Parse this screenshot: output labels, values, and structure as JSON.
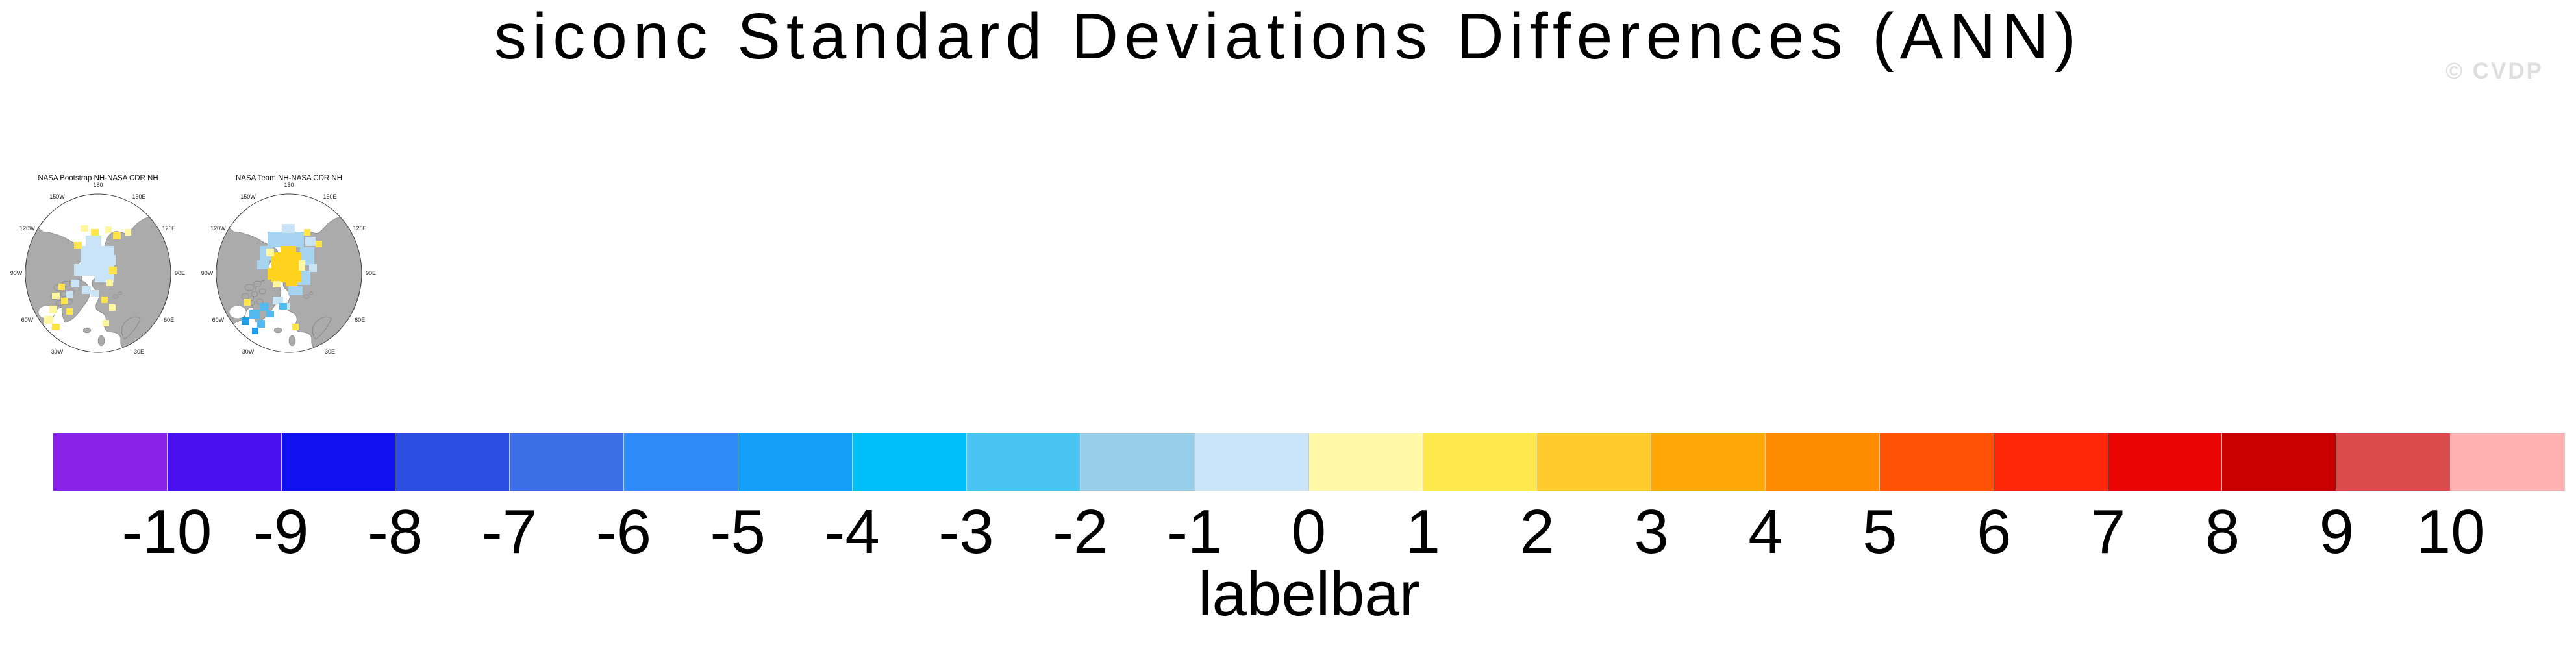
{
  "header": {
    "title": "siconc Standard Deviations Differences (ANN)",
    "watermark": "© CVDP"
  },
  "colorbar": {
    "caption": "labelbar",
    "tick_labels": [
      "-10",
      "-9",
      "-8",
      "-7",
      "-6",
      "-5",
      "-4",
      "-3",
      "-2",
      "-1",
      "0",
      "1",
      "2",
      "3",
      "4",
      "5",
      "6",
      "7",
      "8",
      "9",
      "10"
    ],
    "colors": [
      "#8A22E8",
      "#4A10F0",
      "#1010F0",
      "#2C4DE2",
      "#3B6FE8",
      "#2E8CF8",
      "#14A0FA",
      "#00BFF8",
      "#49C4F2",
      "#96CEEA",
      "#C9E4F6",
      "#FFF9A6",
      "#FFE84E",
      "#FFCB2C",
      "#FFA707",
      "#FF8C00",
      "#FF5206",
      "#FF2608",
      "#EA0404",
      "#C80000",
      "#D94A4A",
      "#FFB0B0"
    ],
    "border_color": "#cccccc"
  },
  "palette": {
    "pb": "#C9E4F6",
    "lb": "#A6D4F0",
    "mb": "#52BAEE",
    "db": "#1E9EE8",
    "py": "#FFF6A0",
    "yl": "#FFE44A",
    "vy": "#FFD21E",
    "land": "#ABABAB",
    "coast": "#6E6E6E",
    "outline": "#333333",
    "label_color": "#222222"
  },
  "maps": [
    {
      "title": "NASA Bootstrap NH-NASA CDR NH",
      "lon_labels": [
        {
          "t": "180",
          "a": 0
        },
        {
          "t": "150E",
          "a": 30
        },
        {
          "t": "120E",
          "a": 60
        },
        {
          "t": "90E",
          "a": 90
        },
        {
          "t": "60E",
          "a": 120
        },
        {
          "t": "30E",
          "a": 150
        },
        {
          "t": "0",
          "a": 180
        },
        {
          "t": "30W",
          "a": 210
        },
        {
          "t": "60W",
          "a": 240
        },
        {
          "t": "90W",
          "a": 270
        },
        {
          "t": "120W",
          "a": 300
        },
        {
          "t": "150W",
          "a": 330
        }
      ],
      "patches": [
        {
          "c": "pb",
          "r": [
            [
              118,
              123,
              52,
              30
            ],
            [
              126,
              107,
              24,
              16
            ],
            [
              108,
              151,
              42,
              18
            ],
            [
              140,
              153,
              30,
              26
            ],
            [
              152,
              137,
              20,
              16
            ],
            [
              104,
              175,
              12,
              12
            ],
            [
              120,
              185,
              14,
              12
            ],
            [
              134,
              191,
              12,
              10
            ],
            [
              96,
              193,
              10,
              10
            ]
          ]
        },
        {
          "c": "py",
          "r": [
            [
              118,
              91,
              12,
              10
            ],
            [
              156,
              93,
              10,
              10
            ],
            [
              186,
              97,
              10,
              10
            ],
            [
              158,
              175,
              10,
              10
            ],
            [
              74,
              195,
              12,
              10
            ],
            [
              70,
              215,
              12,
              12
            ],
            [
              62,
              231,
              14,
              12
            ],
            [
              58,
              253,
              10,
              10
            ],
            [
              162,
              213,
              10,
              10
            ],
            [
              152,
              237,
              10,
              10
            ]
          ]
        },
        {
          "c": "yl",
          "r": [
            [
              134,
              97,
              12,
              10
            ],
            [
              168,
              101,
              12,
              12
            ],
            [
              108,
              117,
              12,
              10
            ],
            [
              162,
              155,
              12,
              12
            ],
            [
              84,
              181,
              10,
              10
            ],
            [
              88,
              203,
              10,
              10
            ],
            [
              96,
              219,
              10,
              10
            ],
            [
              74,
              243,
              12,
              10
            ],
            [
              150,
              201,
              10,
              10
            ]
          ]
        }
      ]
    },
    {
      "title": "NASA Team NH-NASA CDR NH",
      "lon_labels": [
        {
          "t": "180",
          "a": 0
        },
        {
          "t": "150E",
          "a": 30
        },
        {
          "t": "120E",
          "a": 60
        },
        {
          "t": "90E",
          "a": 90
        },
        {
          "t": "60E",
          "a": 120
        },
        {
          "t": "30E",
          "a": 150
        },
        {
          "t": "0",
          "a": 180
        },
        {
          "t": "30W",
          "a": 210
        },
        {
          "t": "60W",
          "a": 240
        },
        {
          "t": "90W",
          "a": 270
        },
        {
          "t": "120W",
          "a": 300
        },
        {
          "t": "150W",
          "a": 330
        }
      ],
      "patches": [
        {
          "c": "lb",
          "r": [
            [
              112,
              101,
              56,
              24
            ],
            [
              100,
              123,
              20,
              22
            ],
            [
              162,
              125,
              22,
              28
            ],
            [
              158,
              161,
              20,
              22
            ],
            [
              144,
              185,
              22,
              14
            ],
            [
              96,
              145,
              18,
              14
            ]
          ]
        },
        {
          "c": "pb",
          "r": [
            [
              134,
              89,
              20,
              14
            ],
            [
              170,
              109,
              16,
              14
            ],
            [
              176,
              151,
              12,
              12
            ],
            [
              120,
              201,
              16,
              12
            ],
            [
              134,
              211,
              12,
              10
            ]
          ]
        },
        {
          "c": "vy",
          "r": [
            [
              118,
              133,
              46,
              46
            ],
            [
              132,
              123,
              24,
              12
            ],
            [
              112,
              157,
              18,
              18
            ],
            [
              140,
              173,
              18,
              12
            ]
          ]
        },
        {
          "c": "py",
          "r": [
            [
              110,
              127,
              12,
              12
            ],
            [
              160,
              145,
              10,
              16
            ],
            [
              120,
              177,
              12,
              10
            ]
          ]
        },
        {
          "c": "mb",
          "r": [
            [
              100,
              211,
              14,
              12
            ],
            [
              84,
              221,
              16,
              14
            ],
            [
              110,
              223,
              12,
              10
            ],
            [
              96,
              237,
              12,
              12
            ],
            [
              130,
              211,
              12,
              10
            ]
          ]
        },
        {
          "c": "db",
          "r": [
            [
              72,
              233,
              12,
              12
            ],
            [
              88,
              249,
              10,
              10
            ]
          ]
        },
        {
          "c": "yl",
          "r": [
            [
              168,
              97,
              10,
              10
            ],
            [
              186,
              115,
              10,
              10
            ],
            [
              76,
              205,
              10,
              10
            ],
            [
              150,
              243,
              10,
              10
            ]
          ]
        }
      ]
    }
  ],
  "chart_data": {
    "type": "heatmap",
    "title": "siconc Standard Deviations Differences (ANN)",
    "panels": [
      "NASA Bootstrap NH-NASA CDR NH",
      "NASA Team NH-NASA CDR NH"
    ],
    "projection": "north polar stereographic",
    "lon_gridline_labels": [
      "180",
      "150W",
      "150E",
      "120W",
      "120E",
      "90W",
      "90E",
      "60W",
      "60E",
      "30W",
      "30E",
      "0"
    ],
    "colorbar_label": "labelbar",
    "levels": [
      -10,
      -9,
      -8,
      -7,
      -6,
      -5,
      -4,
      -3,
      -2,
      -1,
      0,
      1,
      2,
      3,
      4,
      5,
      6,
      7,
      8,
      9,
      10
    ],
    "colors": [
      "#8A22E8",
      "#4A10F0",
      "#1010F0",
      "#2C4DE2",
      "#3B6FE8",
      "#2E8CF8",
      "#14A0FA",
      "#00BFF8",
      "#49C4F2",
      "#96CEEA",
      "#C9E4F6",
      "#FFF9A6",
      "#FFE84E",
      "#FFCB2C",
      "#FFA707",
      "#FF8C00",
      "#FF5206",
      "#FF2608",
      "#EA0404",
      "#C80000",
      "#D94A4A",
      "#FFB0B0"
    ],
    "legend_position": "bottom",
    "notes": "Differences mostly within -1 to +1 (pale blue / pale yellow); NASA Team panel shows a +1 to +2 (gold) patch near the pole and -2 to -3 (medium blue) patches near Baffin Bay."
  }
}
